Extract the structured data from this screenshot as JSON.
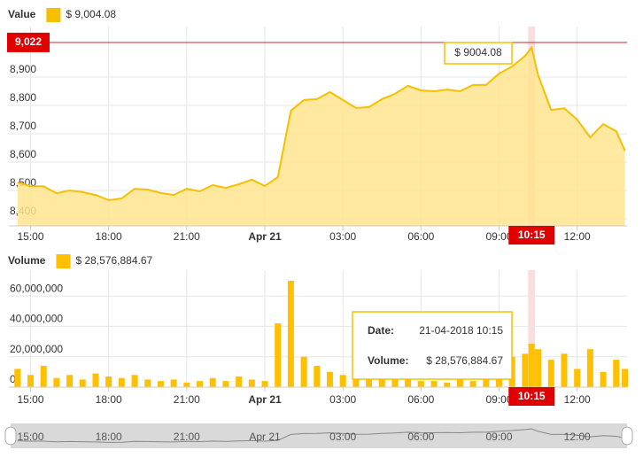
{
  "chart_data": [
    {
      "type": "area",
      "series": [
        {
          "name": "Value",
          "color": "#f5c000",
          "values": [
            8528,
            8515,
            8515,
            8490,
            8500,
            8494,
            8484,
            8466,
            8472,
            8506,
            8503,
            8491,
            8484,
            8506,
            8497,
            8519,
            8509,
            8522,
            8538,
            8516,
            8547,
            8781,
            8819,
            8822,
            8847,
            8819,
            8791,
            8794,
            8822,
            8841,
            8869,
            8853,
            8850,
            8856,
            8850,
            8872,
            8872,
            8912,
            8937,
            8975,
            9004.08,
            8906,
            8784,
            8790,
            8750,
            8687,
            8734,
            8709,
            8640
          ]
        }
      ],
      "x": [
        "2018-04-20 14:30",
        "2018-04-20 15:00",
        "2018-04-20 15:30",
        "2018-04-20 16:00",
        "2018-04-20 16:30",
        "2018-04-20 17:00",
        "2018-04-20 17:30",
        "2018-04-20 18:00",
        "2018-04-20 18:30",
        "2018-04-20 19:00",
        "2018-04-20 19:30",
        "2018-04-20 20:00",
        "2018-04-20 20:30",
        "2018-04-20 21:00",
        "2018-04-20 21:30",
        "2018-04-20 22:00",
        "2018-04-20 22:30",
        "2018-04-20 23:00",
        "2018-04-20 23:30",
        "2018-04-21 00:00",
        "2018-04-21 00:30",
        "2018-04-21 01:00",
        "2018-04-21 01:30",
        "2018-04-21 02:00",
        "2018-04-21 02:30",
        "2018-04-21 03:00",
        "2018-04-21 03:30",
        "2018-04-21 04:00",
        "2018-04-21 04:30",
        "2018-04-21 05:00",
        "2018-04-21 05:30",
        "2018-04-21 06:00",
        "2018-04-21 06:30",
        "2018-04-21 07:00",
        "2018-04-21 07:30",
        "2018-04-21 08:00",
        "2018-04-21 08:30",
        "2018-04-21 09:00",
        "2018-04-21 09:30",
        "2018-04-21 10:00",
        "2018-04-21 10:15",
        "2018-04-21 10:30",
        "2018-04-21 11:00",
        "2018-04-21 11:30",
        "2018-04-21 12:00",
        "2018-04-21 12:30",
        "2018-04-21 13:00",
        "2018-04-21 13:30",
        "2018-04-21 13:50"
      ],
      "legend_value": "$ 9,004.08",
      "xlim": [
        "2018-04-20 14:10",
        "2018-04-21 13:55"
      ],
      "xticks": [
        {
          "value": "2018-04-20 15:00",
          "label": "15:00"
        },
        {
          "value": "2018-04-20 18:00",
          "label": "18:00"
        },
        {
          "value": "2018-04-20 21:00",
          "label": "21:00"
        },
        {
          "value": "2018-04-21 00:00",
          "label": "Apr 21"
        },
        {
          "value": "2018-04-21 03:00",
          "label": "03:00"
        },
        {
          "value": "2018-04-21 06:00",
          "label": "06:00"
        },
        {
          "value": "2018-04-21 09:00",
          "label": "09:00"
        },
        {
          "value": "2018-04-21 12:00",
          "label": "12:00"
        }
      ],
      "ylim": [
        8375,
        9078
      ],
      "yticks": [
        {
          "value": 8400,
          "label": "8,400"
        },
        {
          "value": 8500,
          "label": "8,500"
        },
        {
          "value": 8600,
          "label": "8,600"
        },
        {
          "value": 8700,
          "label": "8,700"
        },
        {
          "value": 8800,
          "label": "8,800"
        },
        {
          "value": 8900,
          "label": "8,900"
        }
      ],
      "grid": true,
      "price_marker": {
        "value": 9022,
        "label": "9,022"
      },
      "tooltip": {
        "text": "$ 9004.08"
      }
    },
    {
      "type": "bar",
      "series": [
        {
          "name": "Volume",
          "color": "#ffc000",
          "values": [
            12000000,
            8000000,
            14000000,
            6000000,
            8000000,
            5000000,
            9000000,
            7000000,
            6000000,
            8000000,
            5000000,
            4000000,
            5000000,
            3000000,
            4000000,
            6000000,
            4000000,
            7000000,
            5000000,
            4000000,
            42000000,
            70000000,
            20000000,
            14000000,
            10000000,
            8000000,
            7000000,
            9000000,
            6000000,
            5000000,
            6000000,
            4000000,
            4000000,
            3000000,
            5000000,
            4000000,
            10000000,
            12000000,
            20000000,
            22000000,
            28576884.67,
            25000000,
            18000000,
            22000000,
            12000000,
            25000000,
            10000000,
            18000000,
            12000000
          ]
        }
      ],
      "x": [
        "2018-04-20 14:30",
        "2018-04-20 15:00",
        "2018-04-20 15:30",
        "2018-04-20 16:00",
        "2018-04-20 16:30",
        "2018-04-20 17:00",
        "2018-04-20 17:30",
        "2018-04-20 18:00",
        "2018-04-20 18:30",
        "2018-04-20 19:00",
        "2018-04-20 19:30",
        "2018-04-20 20:00",
        "2018-04-20 20:30",
        "2018-04-20 21:00",
        "2018-04-20 21:30",
        "2018-04-20 22:00",
        "2018-04-20 22:30",
        "2018-04-20 23:00",
        "2018-04-20 23:30",
        "2018-04-21 00:00",
        "2018-04-21 00:30",
        "2018-04-21 01:00",
        "2018-04-21 01:30",
        "2018-04-21 02:00",
        "2018-04-21 02:30",
        "2018-04-21 03:00",
        "2018-04-21 03:30",
        "2018-04-21 04:00",
        "2018-04-21 04:30",
        "2018-04-21 05:00",
        "2018-04-21 05:30",
        "2018-04-21 06:00",
        "2018-04-21 06:30",
        "2018-04-21 07:00",
        "2018-04-21 07:30",
        "2018-04-21 08:00",
        "2018-04-21 08:30",
        "2018-04-21 09:00",
        "2018-04-21 09:30",
        "2018-04-21 10:00",
        "2018-04-21 10:15",
        "2018-04-21 10:30",
        "2018-04-21 11:00",
        "2018-04-21 11:30",
        "2018-04-21 12:00",
        "2018-04-21 12:30",
        "2018-04-21 13:00",
        "2018-04-21 13:30",
        "2018-04-21 13:50"
      ],
      "legend_value": "$ 28,576,884.67",
      "xlim": [
        "2018-04-20 14:10",
        "2018-04-21 13:55"
      ],
      "xticks": [
        {
          "value": "2018-04-20 15:00",
          "label": "15:00"
        },
        {
          "value": "2018-04-20 18:00",
          "label": "18:00"
        },
        {
          "value": "2018-04-20 21:00",
          "label": "21:00"
        },
        {
          "value": "2018-04-21 00:00",
          "label": "Apr 21"
        },
        {
          "value": "2018-04-21 03:00",
          "label": "03:00"
        },
        {
          "value": "2018-04-21 06:00",
          "label": "06:00"
        },
        {
          "value": "2018-04-21 09:00",
          "label": "09:00"
        },
        {
          "value": "2018-04-21 12:00",
          "label": "12:00"
        }
      ],
      "ylim": [
        0,
        77000000
      ],
      "yticks": [
        0,
        {
          "value": 20000000,
          "label": "20,000,000"
        },
        {
          "value": 40000000,
          "label": "40,000,000"
        },
        {
          "value": 60000000,
          "label": "60,000,000"
        }
      ],
      "grid": true,
      "tooltip": {
        "date_label": "Date:",
        "date": "21-04-2018 10:15",
        "volume_label": "Volume:",
        "volume": "$ 28,576,884.67"
      }
    }
  ],
  "crosshair": {
    "x": "2018-04-21 10:15",
    "label": "10:15"
  }
}
